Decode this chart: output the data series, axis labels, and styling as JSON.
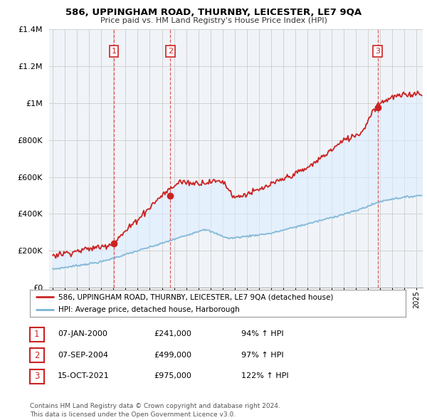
{
  "title": "586, UPPINGHAM ROAD, THURNBY, LEICESTER, LE7 9QA",
  "subtitle": "Price paid vs. HM Land Registry's House Price Index (HPI)",
  "legend_line1": "586, UPPINGHAM ROAD, THURNBY, LEICESTER, LE7 9QA (detached house)",
  "legend_line2": "HPI: Average price, detached house, Harborough",
  "footnote1": "Contains HM Land Registry data © Crown copyright and database right 2024.",
  "footnote2": "This data is licensed under the Open Government Licence v3.0.",
  "transactions": [
    {
      "num": 1,
      "date": "07-JAN-2000",
      "price": "£241,000",
      "pct": "94% ↑ HPI",
      "year": 2000.03,
      "value": 241000
    },
    {
      "num": 2,
      "date": "07-SEP-2004",
      "price": "£499,000",
      "pct": "97% ↑ HPI",
      "year": 2004.69,
      "value": 499000
    },
    {
      "num": 3,
      "date": "15-OCT-2021",
      "price": "£975,000",
      "pct": "122% ↑ HPI",
      "year": 2021.79,
      "value": 975000
    }
  ],
  "hpi_color": "#7ab3d4",
  "price_color": "#cc2222",
  "fill_color": "#ddeeff",
  "vline_color": "#dd4444",
  "background_chart": "#f0f4f8",
  "background_fig": "#ffffff",
  "ylim": [
    0,
    1400000
  ],
  "xlim_start": 1994.7,
  "xlim_end": 2025.5
}
